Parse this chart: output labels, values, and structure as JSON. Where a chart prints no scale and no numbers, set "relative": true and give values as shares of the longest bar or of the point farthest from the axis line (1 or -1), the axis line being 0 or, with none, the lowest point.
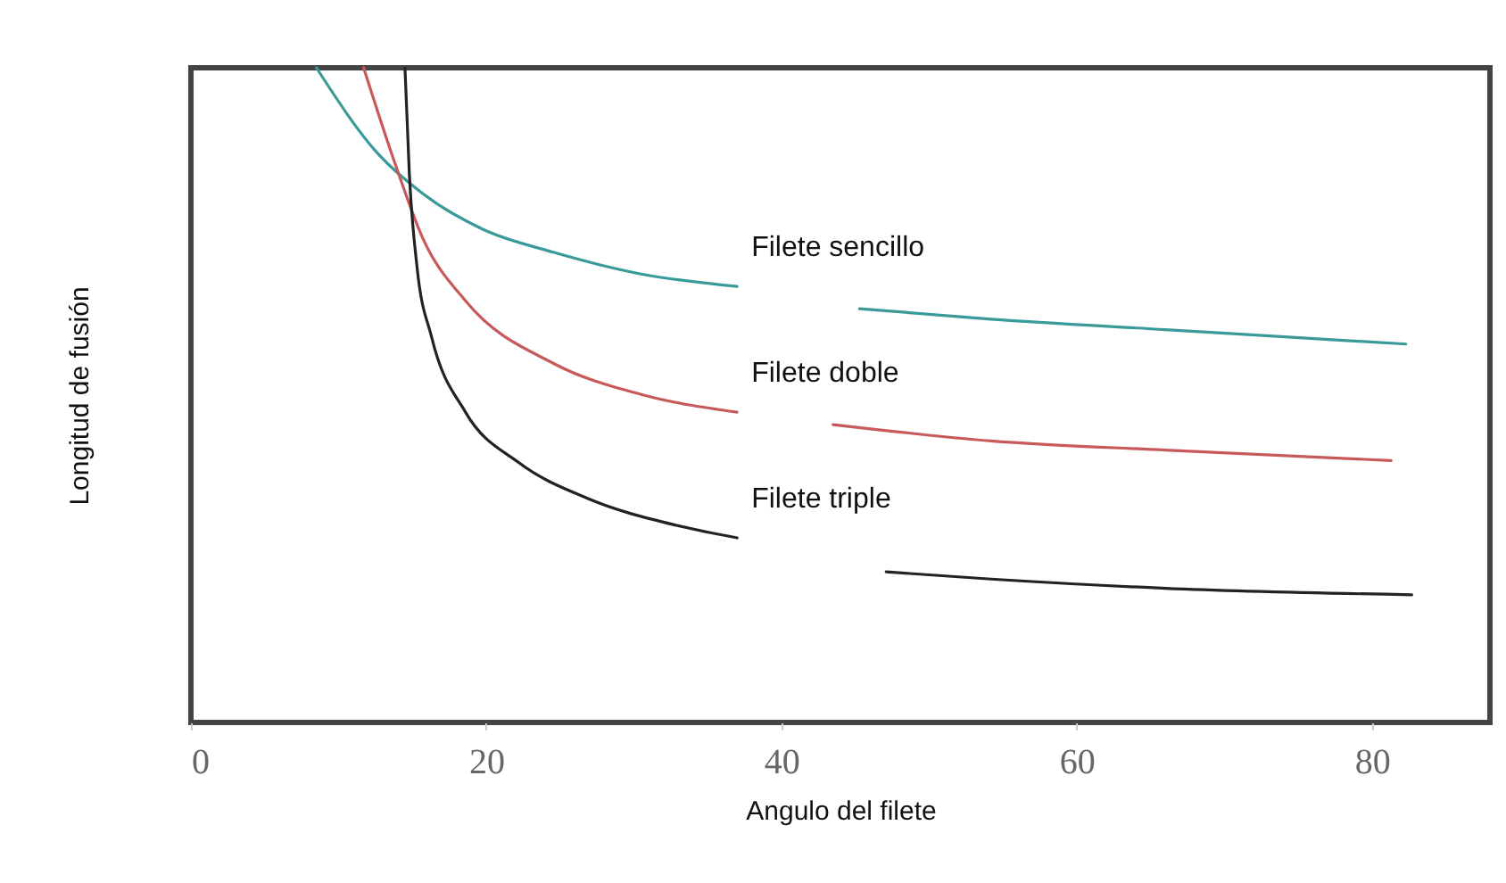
{
  "chart_data": {
    "type": "line",
    "xlabel": "Angulo del filete",
    "ylabel": "Longitud de fusión",
    "relative": true,
    "xlim": [
      0,
      88
    ],
    "xticks": [
      0,
      20,
      40,
      60,
      80
    ],
    "grid": false,
    "marker": "none",
    "line_style": "solid",
    "series": [
      {
        "name": "Filete sencillo",
        "color": "#3a9a9a",
        "x": [
          8.5,
          12.7,
          15.7,
          19.8,
          24.6,
          30.5,
          37,
          39.5,
          45.3,
          54.2,
          66,
          82.3
        ],
        "values": [
          1,
          0.868,
          0.808,
          0.753,
          0.718,
          0.685,
          0.666,
          null,
          0.632,
          0.616,
          0.6,
          0.578
        ]
      },
      {
        "name": "Filete doble",
        "color": "#c8595a",
        "x": [
          11.7,
          13.9,
          15.7,
          18.6,
          24.6,
          30.5,
          37,
          39.5,
          43.5,
          54.2,
          66,
          81.3
        ],
        "values": [
          1,
          0.849,
          0.74,
          0.644,
          0.548,
          0.501,
          0.474,
          null,
          0.455,
          0.43,
          0.416,
          0.4
        ]
      },
      {
        "name": "Filete triple",
        "color": "#222222",
        "x": [
          14.5,
          14.8,
          15.3,
          16.3,
          18.6,
          22.2,
          26.9,
          32.9,
          37,
          40,
          47.1,
          54.2,
          66,
          82.7
        ],
        "values": [
          1,
          0.836,
          0.699,
          0.589,
          0.474,
          0.397,
          0.342,
          0.301,
          0.282,
          null,
          0.23,
          0.219,
          0.205,
          0.195
        ]
      }
    ]
  }
}
